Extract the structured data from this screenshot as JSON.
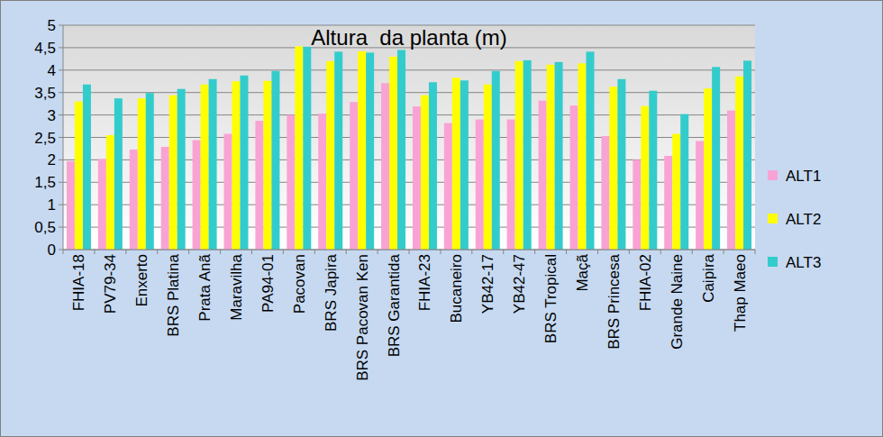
{
  "chart_data": {
    "type": "bar",
    "title": "Altura  da planta (m)",
    "categories": [
      "FHIA-18",
      "PV79-34",
      "Enxerto",
      "BRS Platina",
      "Prata Anã",
      "Maravilha",
      "PA94-01",
      "Pacovan",
      "BRS Japira",
      "BRS Pacovan Ken",
      "BRS Garantida",
      "FHIA-23",
      "Bucaneiro",
      "YB42-17",
      "YB42-47",
      "BRS Tropical",
      "Maçã",
      "BRS Princesa",
      "FHIA-02",
      "Grande Naine",
      "Caipira",
      "Thap Maeo"
    ],
    "series": [
      {
        "name": "ALT1",
        "color": "#f9a3d5",
        "values": [
          1.97,
          2.02,
          2.23,
          2.29,
          2.44,
          2.58,
          2.87,
          3.0,
          3.03,
          3.29,
          3.71,
          3.19,
          2.82,
          2.9,
          2.9,
          3.32,
          3.21,
          2.53,
          2.0,
          2.09,
          2.42,
          3.1
        ]
      },
      {
        "name": "ALT2",
        "color": "#ffff00",
        "values": [
          3.3,
          2.55,
          3.37,
          3.44,
          3.68,
          3.75,
          3.76,
          4.53,
          4.2,
          4.42,
          4.3,
          3.44,
          3.83,
          3.68,
          4.2,
          4.12,
          4.15,
          3.63,
          3.2,
          2.58,
          3.59,
          3.86
        ]
      },
      {
        "name": "ALT3",
        "color": "#33cccc",
        "values": [
          3.68,
          3.37,
          3.49,
          3.58,
          3.8,
          3.88,
          3.98,
          4.52,
          4.41,
          4.39,
          4.45,
          3.73,
          3.77,
          3.98,
          4.22,
          4.18,
          4.41,
          3.8,
          3.54,
          3.02,
          4.07,
          4.21
        ]
      }
    ],
    "ylim": [
      0,
      5
    ],
    "yticks": [
      0,
      {
        "value": 0.5,
        "label": "0,5"
      },
      1,
      {
        "value": 1.5,
        "label": "1,5"
      },
      2,
      {
        "value": 2.5,
        "label": "2,5"
      },
      3,
      {
        "value": 3.5,
        "label": "3,5"
      },
      4,
      {
        "value": 4.5,
        "label": "4,5"
      },
      5
    ],
    "grid": true,
    "legend": "right"
  }
}
